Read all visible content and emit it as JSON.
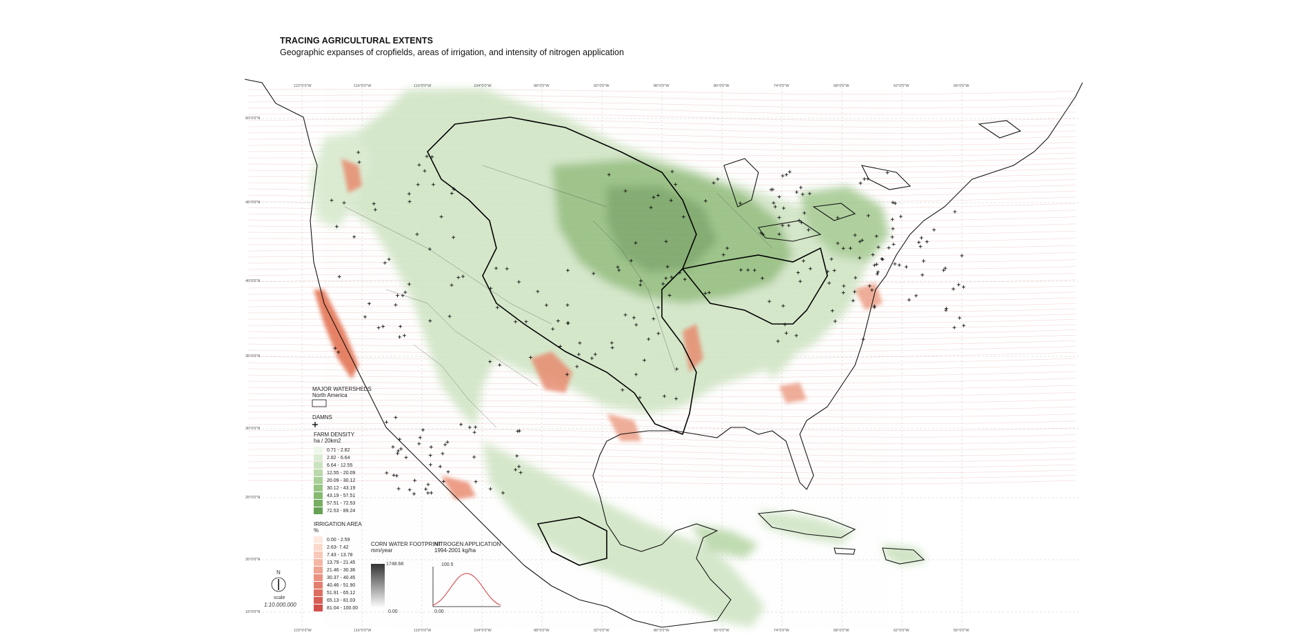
{
  "header": {
    "title": "TRACING AGRICULTURAL EXTENTS",
    "subtitle": "Geographic expanses of cropfields, areas of irrigation, and intensity of nitrogen application"
  },
  "legend": {
    "watersheds": {
      "title": "MAJOR WATERSHEDS",
      "subtitle": "North America"
    },
    "dams": {
      "title": "DAMNS",
      "icon": "plus-marker-icon"
    },
    "farm_density": {
      "title": "FARM DENSITY",
      "unit": "ha / 20km2",
      "classes": [
        {
          "label": "0.71 - 2.82",
          "color": "#eef6ea"
        },
        {
          "label": "2.82 - 6.64",
          "color": "#dcecd3"
        },
        {
          "label": "6.64 - 12.55",
          "color": "#cbe3bf"
        },
        {
          "label": "12.55 - 20.09",
          "color": "#bad9ab"
        },
        {
          "label": "20.09 - 30.12",
          "color": "#a8cf97"
        },
        {
          "label": "30.12 - 43.19",
          "color": "#97c584"
        },
        {
          "label": "43.19 - 57.51",
          "color": "#86ba72"
        },
        {
          "label": "57.51 - 72.53",
          "color": "#76ae62"
        },
        {
          "label": "72.53 - 89.24",
          "color": "#67a155"
        }
      ]
    },
    "irrigation": {
      "title": "IRRIGATION AREA",
      "unit": "%",
      "classes": [
        {
          "label": "0.00 - 2.59",
          "color": "#fde9e0"
        },
        {
          "label": "2.63- 7.42",
          "color": "#fbd9cc"
        },
        {
          "label": "7.43 - 13.78",
          "color": "#f8c8b8"
        },
        {
          "label": "13.79 - 21.45",
          "color": "#f4b6a4"
        },
        {
          "label": "21.46 - 30.36",
          "color": "#efa391"
        },
        {
          "label": "30.37 - 40.45",
          "color": "#ea917f"
        },
        {
          "label": "40.46 - 51.90",
          "color": "#e47f6f"
        },
        {
          "label": "51.91 - 65.12",
          "color": "#de6e61"
        },
        {
          "label": "65.13 - 81.03",
          "color": "#d85e55"
        },
        {
          "label": "81.04 - 100.00",
          "color": "#d1504b"
        }
      ]
    },
    "corn_water": {
      "title": "CORN WATER FOOTPRINT",
      "unit": "mm/year",
      "max": "1748.68",
      "min": "0.00"
    },
    "nitrogen": {
      "title": "NITROGEN APPLICATION",
      "unit": "1994-2001 kg/ha",
      "max": "100.5",
      "min": "0.00"
    },
    "north": {
      "letter": "N",
      "scale_label": "scale",
      "scale_value": "1:10.000.000"
    }
  },
  "graticule": {
    "top_labels": [
      "122°0'0\"W",
      "116°0'0\"W",
      "110°0'0\"W",
      "104°0'0\"W",
      "98°0'0\"W",
      "92°0'0\"W",
      "86°0'0\"W",
      "80°0'0\"W",
      "74°0'0\"W",
      "68°0'0\"W",
      "62°0'0\"W",
      "56°0'0\"W"
    ],
    "bottom_labels": [
      "122°0'0\"W",
      "116°0'0\"W",
      "110°0'0\"W",
      "104°0'0\"W",
      "98°0'0\"W",
      "92°0'0\"W",
      "86°0'0\"W",
      "80°0'0\"W",
      "74°0'0\"W",
      "68°0'0\"W",
      "62°0'0\"W",
      "56°0'0\"W"
    ],
    "left_labels": [
      "50°0'0\"N",
      "45°0'0\"N",
      "40°0'0\"N",
      "35°0'0\"N",
      "30°0'0\"N",
      "25°0'0\"N",
      "20°0'0\"N",
      "15°0'0\"N"
    ]
  },
  "colors": {
    "farm_dark": "#6b9e57",
    "farm_light": "#e3efdb",
    "irrigation": "#e0633f",
    "contour": "#e08a8a",
    "outline": "#111111"
  }
}
